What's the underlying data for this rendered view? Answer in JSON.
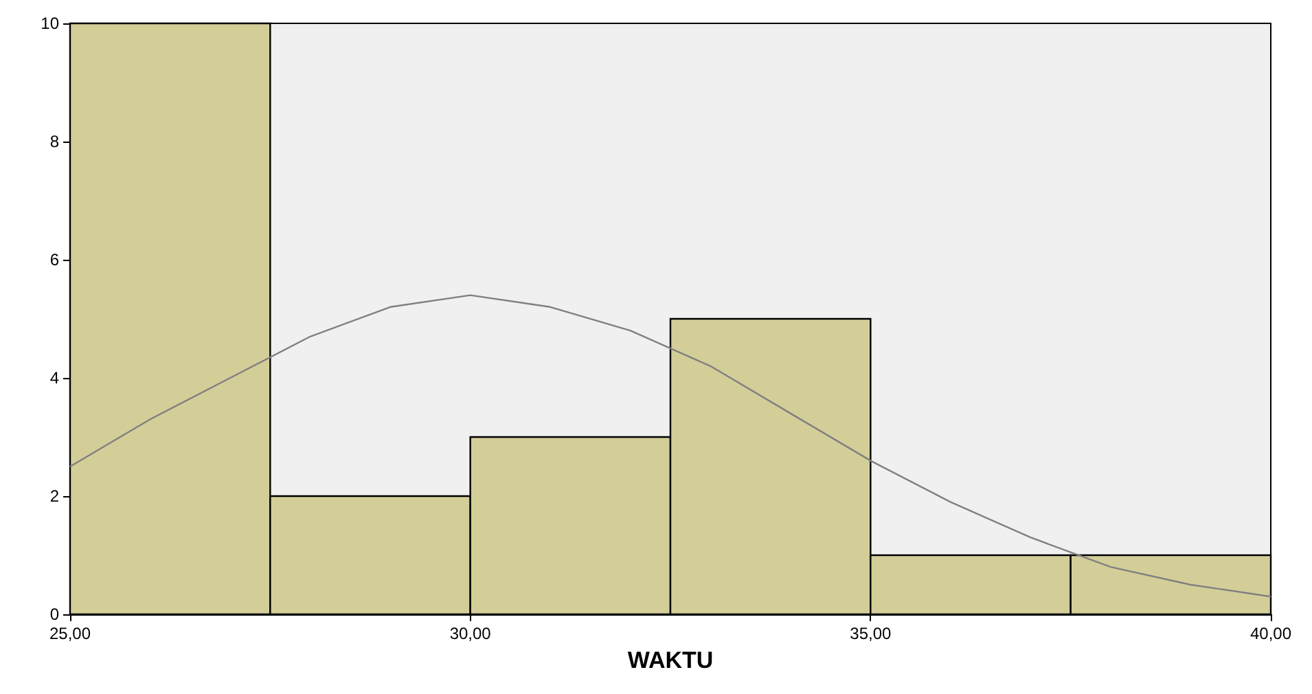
{
  "chart_data": {
    "type": "histogram",
    "xlabel": "WAKTU",
    "bins": [
      25,
      27.5,
      30,
      32.5,
      35,
      37.5,
      40
    ],
    "values": [
      10,
      2,
      3,
      5,
      1,
      1
    ],
    "color": "#d3ce98",
    "series": [
      {
        "type": "line",
        "color": "#808080",
        "x": [
          25,
          26,
          27,
          28,
          29,
          30,
          31,
          32,
          33,
          34,
          35,
          36,
          37,
          38,
          39,
          40
        ],
        "values": [
          2.5,
          3.3,
          4.0,
          4.7,
          5.2,
          5.4,
          5.2,
          4.8,
          4.2,
          3.4,
          2.6,
          1.9,
          1.3,
          0.8,
          0.5,
          0.3
        ]
      }
    ],
    "xlim": [
      25,
      40
    ],
    "xticks": [
      {
        "value": 25,
        "label": "25,00"
      },
      {
        "value": 30,
        "label": "30,00"
      },
      {
        "value": 35,
        "label": "35,00"
      },
      {
        "value": 40,
        "label": "40,00"
      }
    ],
    "ylim": [
      0,
      10
    ],
    "yticks": [
      0,
      2,
      4,
      6,
      8,
      10
    ],
    "grid": false,
    "legend": false,
    "marker": "none",
    "line_style": "solid"
  }
}
